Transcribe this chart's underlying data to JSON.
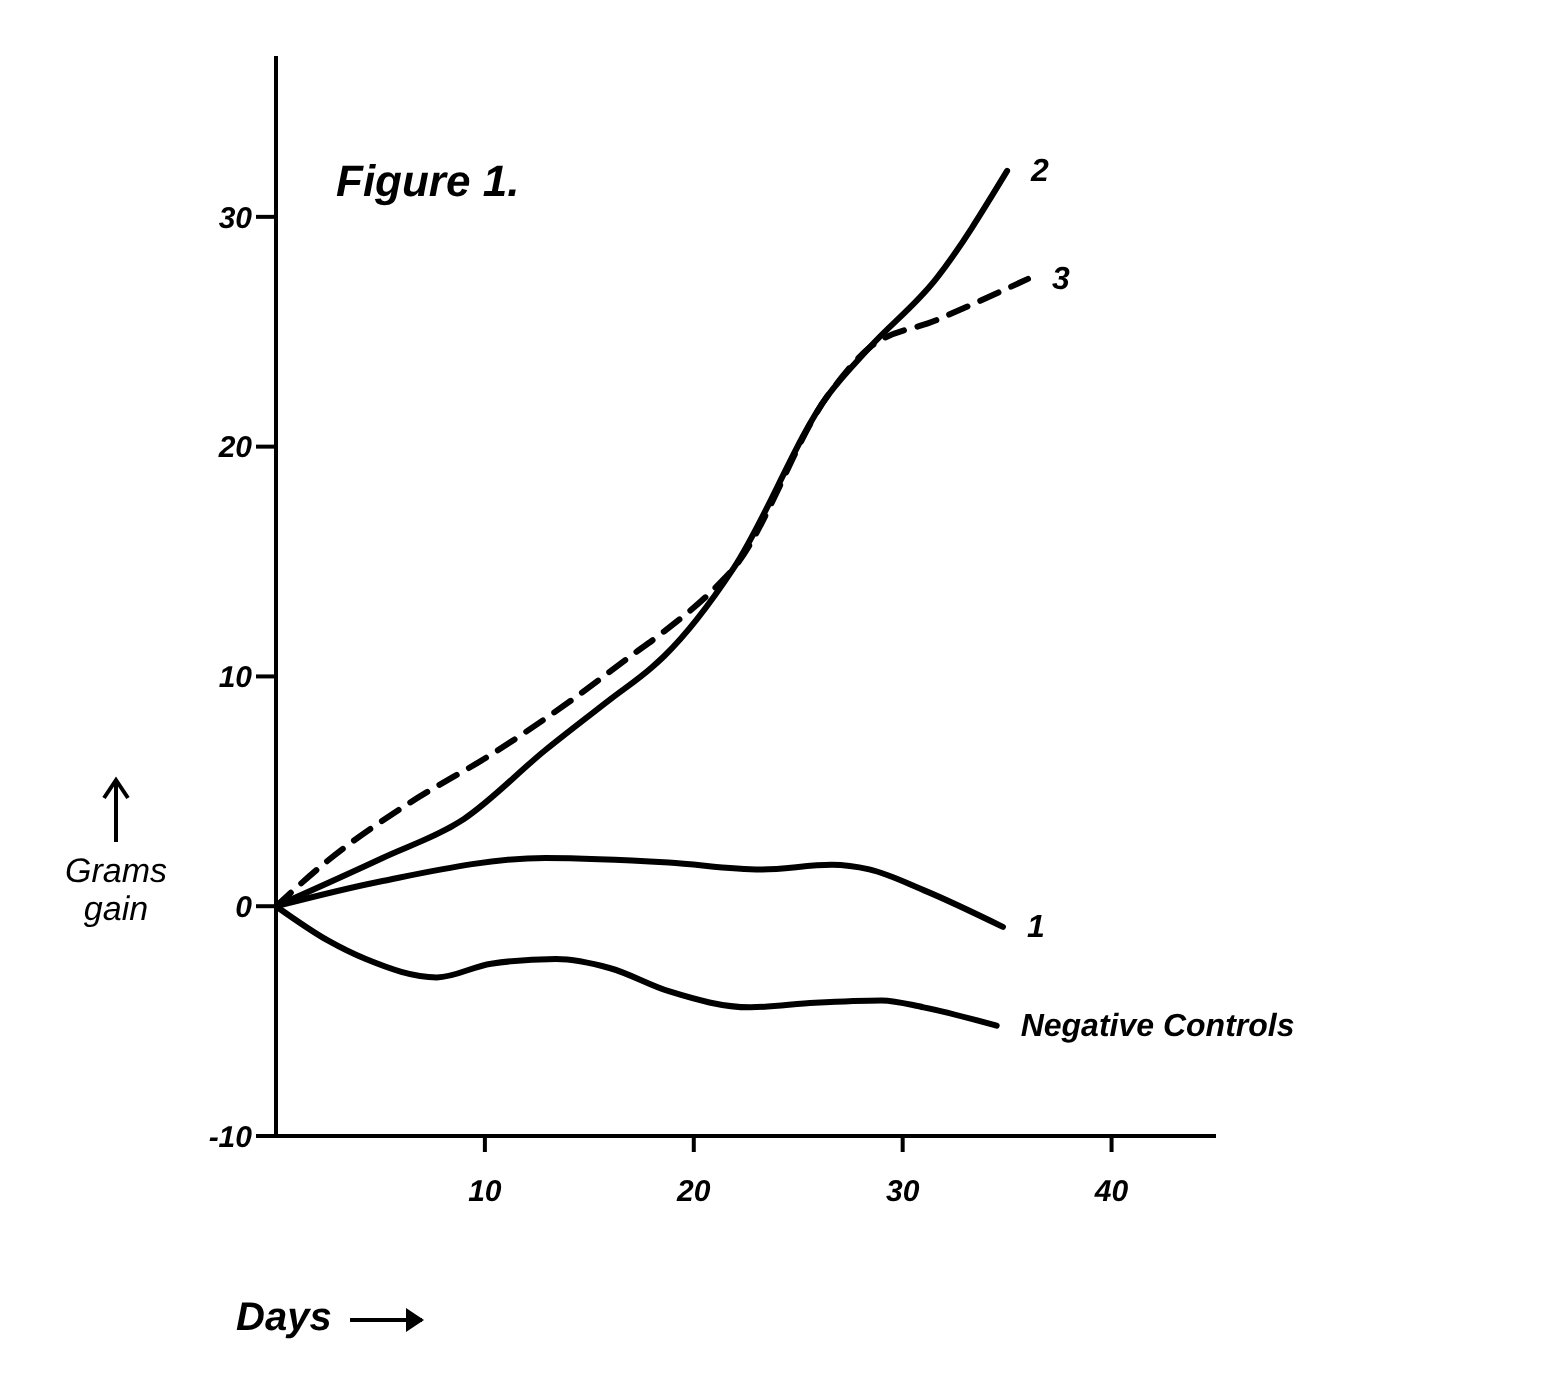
{
  "chart_data": {
    "type": "line",
    "title": "Figure 1.",
    "xlabel": "Days",
    "ylabel": "Grams gain",
    "xlim": [
      0,
      45
    ],
    "ylim": [
      -10,
      37
    ],
    "xticks": [
      10,
      20,
      30,
      40
    ],
    "yticks": [
      -10,
      0,
      10,
      20,
      30
    ],
    "marker": "none",
    "series": [
      {
        "name": "2",
        "color": "#000000",
        "line_style": "solid",
        "x": [
          0,
          5.1,
          9,
          12.9,
          16,
          18,
          18.6,
          21.9,
          26.4,
          28.4,
          31.6,
          35
        ],
        "values": [
          0,
          2.1,
          3.8,
          6.8,
          9,
          10.4,
          10.9,
          14.7,
          22.2,
          24.3,
          27.3,
          32
        ]
      },
      {
        "name": "3",
        "color": "#000000",
        "line_style": "dashed",
        "x": [
          0,
          2.5,
          6.4,
          10.3,
          14.2,
          17,
          18.5,
          21.4,
          21.9,
          26.4,
          28.4,
          31.6,
          36
        ],
        "values": [
          0,
          2,
          4.5,
          6.6,
          9,
          10.9,
          11.9,
          14.2,
          14.7,
          22.2,
          24.3,
          25.5,
          27.3
        ]
      },
      {
        "name": "1",
        "color": "#000000",
        "line_style": "solid",
        "x": [
          0,
          5.1,
          12.9,
          18.8,
          23.2,
          26.6,
          28.4,
          31,
          34.8
        ],
        "values": [
          0,
          1.1,
          2.1,
          1.9,
          1.6,
          1.8,
          1.6,
          0.7,
          -0.9
        ]
      },
      {
        "name": "Negative Controls",
        "color": "#000000",
        "line_style": "solid",
        "x": [
          0,
          2.5,
          4.3,
          7.7,
          10.3,
          13.4,
          16,
          18.8,
          22.7,
          25.8,
          29,
          31,
          34.5
        ],
        "values": [
          0,
          -1.5,
          -2.3,
          -3.1,
          -2.5,
          -2.3,
          -2.7,
          -3.7,
          -4.4,
          -4.2,
          -4.1,
          -4.4,
          -5.2
        ]
      }
    ]
  }
}
